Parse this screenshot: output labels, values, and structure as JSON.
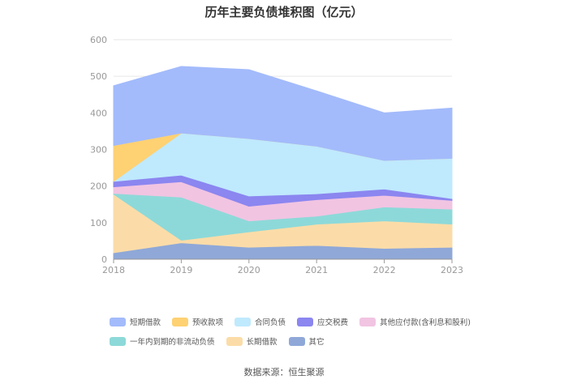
{
  "title": "历年主要负债堆积图（亿元）",
  "source": "数据来源：恒生聚源",
  "chart_data": {
    "type": "area",
    "stacked": true,
    "x": [
      "2018",
      "2019",
      "2020",
      "2021",
      "2022",
      "2023"
    ],
    "ylim": [
      0,
      600
    ],
    "yticks": [
      0,
      100,
      200,
      300,
      400,
      500,
      600
    ],
    "grid": true,
    "legend_position": "bottom",
    "series": [
      {
        "name": "其它",
        "color": "#8fa8d8",
        "values": [
          18,
          45,
          33,
          38,
          30,
          33
        ]
      },
      {
        "name": "长期借款",
        "color": "#fbdca8",
        "values": [
          160,
          7,
          42,
          58,
          75,
          63
        ]
      },
      {
        "name": "一年内到期的非流动负债",
        "color": "#8dd9d9",
        "values": [
          2,
          118,
          30,
          22,
          38,
          41
        ]
      },
      {
        "name": "其他应付款(含利息和股利)",
        "color": "#f1c4e2",
        "values": [
          18,
          42,
          40,
          45,
          32,
          24
        ]
      },
      {
        "name": "应交税费",
        "color": "#8b86f0",
        "values": [
          15,
          18,
          28,
          16,
          17,
          5
        ]
      },
      {
        "name": "合同负债",
        "color": "#bfe9fd",
        "values": [
          0,
          115,
          157,
          130,
          78,
          110
        ]
      },
      {
        "name": "预收款项",
        "color": "#fed172",
        "values": [
          98,
          0,
          0,
          0,
          0,
          0
        ]
      },
      {
        "name": "短期借款",
        "color": "#a3bbfb",
        "values": [
          163,
          182,
          188,
          151,
          130,
          137
        ]
      }
    ]
  },
  "legend_order": [
    "短期借款",
    "预收款项",
    "合同负债",
    "应交税费",
    "其他应付款(含利息和股利)",
    "一年内到期的非流动负债",
    "长期借款",
    "其它"
  ]
}
